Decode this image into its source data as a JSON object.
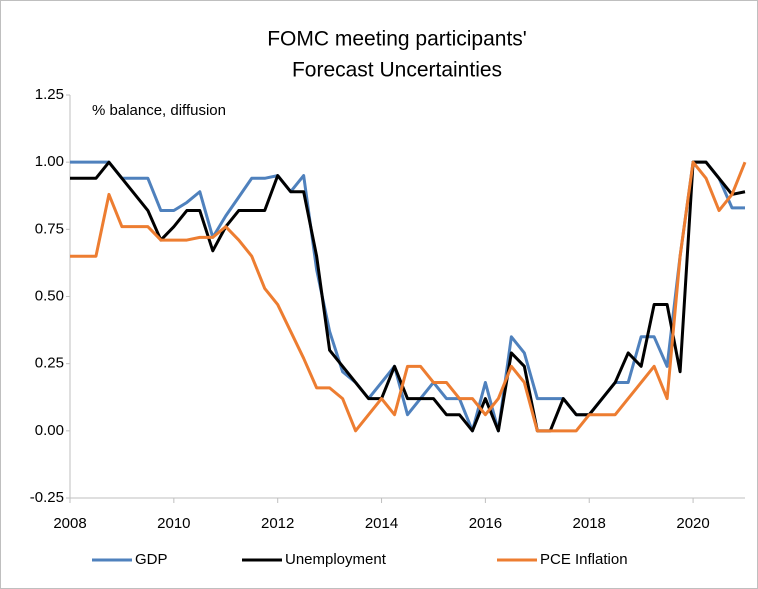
{
  "chart_data": {
    "type": "line",
    "title_lines": [
      "FOMC meeting participants'",
      "Forecast Uncertainties"
    ],
    "annotation": "% balance, diffusion",
    "x": [
      2008,
      2008.25,
      2008.5,
      2008.75,
      2009,
      2009.25,
      2009.5,
      2009.75,
      2010,
      2010.25,
      2010.5,
      2010.75,
      2011,
      2011.25,
      2011.5,
      2011.75,
      2012,
      2012.25,
      2012.5,
      2012.75,
      2013,
      2013.25,
      2013.5,
      2013.75,
      2014,
      2014.25,
      2014.5,
      2014.75,
      2015,
      2015.25,
      2015.5,
      2015.75,
      2016,
      2016.25,
      2016.5,
      2016.75,
      2017,
      2017.25,
      2017.5,
      2017.75,
      2018,
      2018.25,
      2018.5,
      2018.75,
      2019,
      2019.25,
      2019.5,
      2019.75,
      2020,
      2020.25,
      2020.5,
      2020.75,
      2021
    ],
    "series": [
      {
        "name": "GDP",
        "color": "#4f81bd",
        "values": [
          1.0,
          1.0,
          1.0,
          1.0,
          0.94,
          0.94,
          0.94,
          0.82,
          0.82,
          0.85,
          0.89,
          0.72,
          0.8,
          0.87,
          0.94,
          0.94,
          0.95,
          0.89,
          0.95,
          0.6,
          0.37,
          0.22,
          0.18,
          0.12,
          0.18,
          0.24,
          0.06,
          0.12,
          0.18,
          0.12,
          0.12,
          0.0,
          0.18,
          0.0,
          0.35,
          0.29,
          0.12,
          0.12,
          0.12,
          0.06,
          0.06,
          0.12,
          0.18,
          0.18,
          0.35,
          0.35,
          0.24,
          0.65,
          1.0,
          1.0,
          0.94,
          0.83,
          0.83
        ]
      },
      {
        "name": "Unemployment",
        "color": "#000000",
        "values": [
          0.94,
          0.94,
          0.94,
          1.0,
          0.94,
          0.88,
          0.82,
          0.71,
          0.76,
          0.82,
          0.82,
          0.67,
          0.76,
          0.82,
          0.82,
          0.82,
          0.95,
          0.89,
          0.89,
          0.65,
          0.3,
          0.24,
          0.18,
          0.12,
          0.12,
          0.24,
          0.12,
          0.12,
          0.12,
          0.06,
          0.06,
          0.0,
          0.12,
          0.0,
          0.29,
          0.24,
          0.0,
          0.0,
          0.12,
          0.06,
          0.06,
          0.12,
          0.18,
          0.29,
          0.24,
          0.47,
          0.47,
          0.22,
          1.0,
          1.0,
          0.94,
          0.88,
          0.89
        ]
      },
      {
        "name": "PCE Inflation",
        "color": "#ed7d31",
        "values": [
          0.65,
          0.65,
          0.65,
          0.88,
          0.76,
          0.76,
          0.76,
          0.71,
          0.71,
          0.71,
          0.72,
          0.72,
          0.76,
          0.71,
          0.65,
          0.53,
          0.47,
          0.37,
          0.27,
          0.16,
          0.16,
          0.12,
          0.0,
          0.06,
          0.12,
          0.06,
          0.24,
          0.24,
          0.18,
          0.18,
          0.12,
          0.12,
          0.06,
          0.12,
          0.24,
          0.18,
          0.0,
          0.0,
          0.0,
          0.0,
          0.06,
          0.06,
          0.06,
          0.12,
          0.18,
          0.24,
          0.12,
          0.65,
          1.0,
          0.94,
          0.82,
          0.88,
          1.0
        ]
      }
    ],
    "xlim": [
      2008,
      2021
    ],
    "xticks": [
      2008,
      2010,
      2012,
      2014,
      2016,
      2018,
      2020
    ],
    "ylim": [
      -0.25,
      1.25
    ],
    "yticks": [
      {
        "value": -0.25,
        "label": "-0.25"
      },
      {
        "value": 0,
        "label": "0.00"
      },
      {
        "value": 0.25,
        "label": "0.25"
      },
      {
        "value": 0.5,
        "label": "0.50"
      },
      {
        "value": 0.75,
        "label": "0.75"
      },
      {
        "value": 1,
        "label": "1.00"
      },
      {
        "value": 1.25,
        "label": "1.25"
      }
    ],
    "legend": "bottom",
    "grid": false
  }
}
